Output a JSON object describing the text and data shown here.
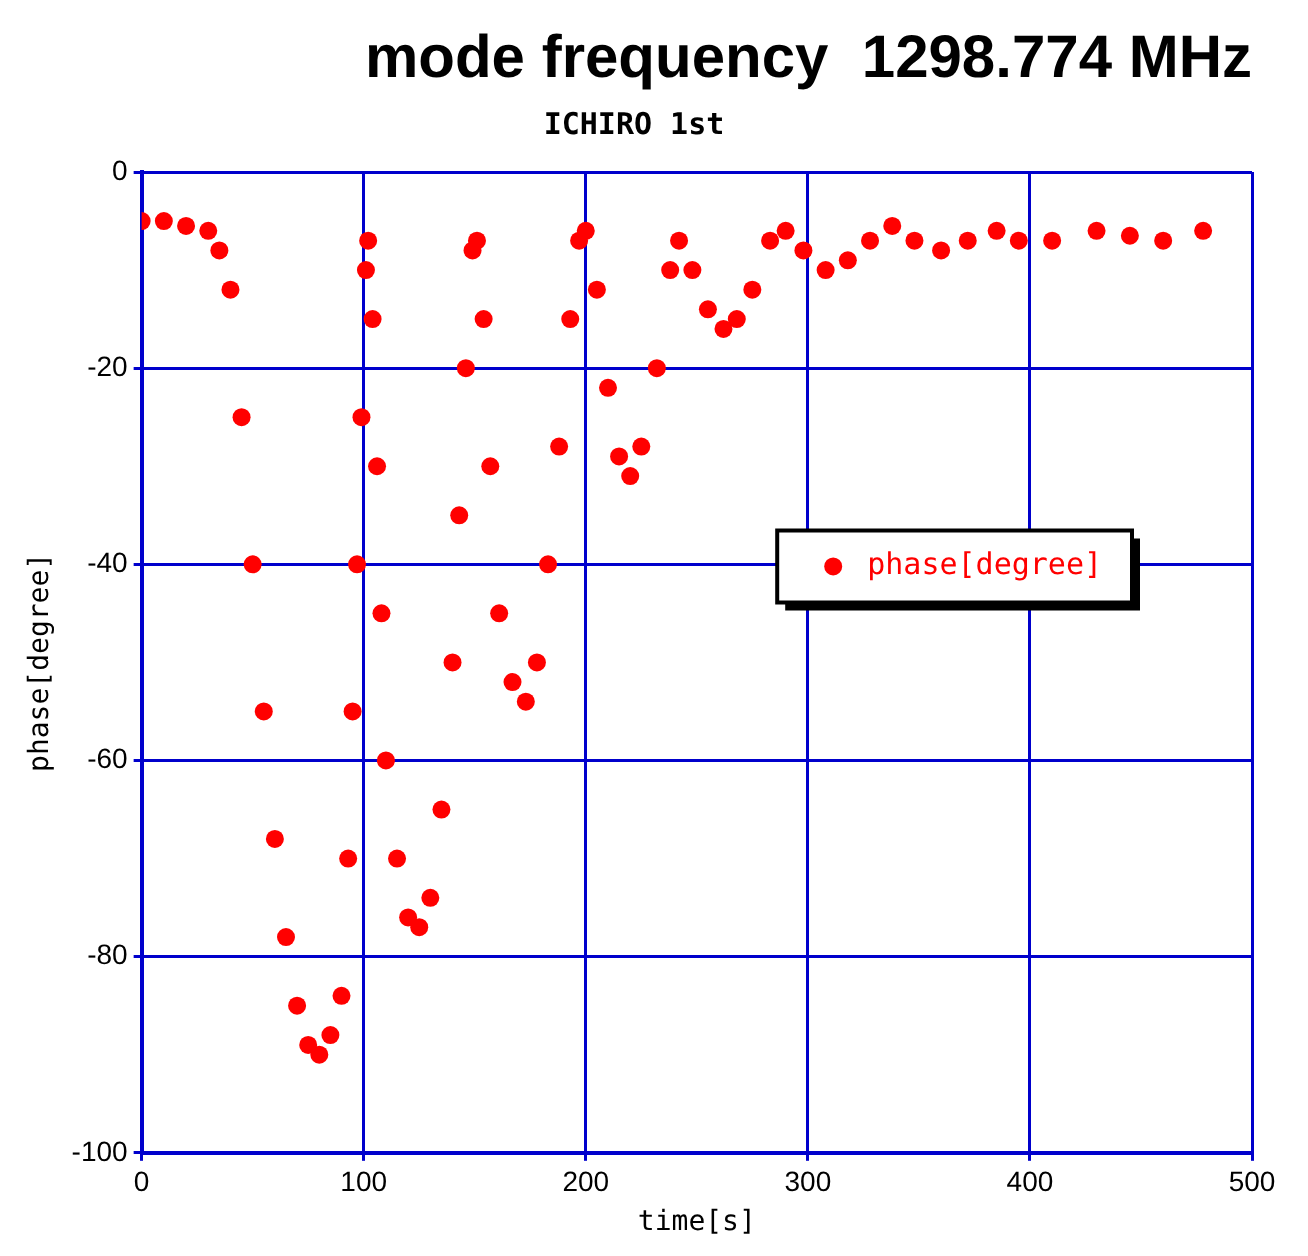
{
  "chart_data": {
    "type": "scatter",
    "title": "mode frequency  1298.774 MHz",
    "subtitle": "ICHIRO 1st",
    "xlabel": "time[s]",
    "ylabel": "phase[degree]",
    "xlim": [
      0,
      500
    ],
    "xticks": [
      0,
      100,
      200,
      300,
      400,
      500
    ],
    "ylim": [
      -100,
      0
    ],
    "yticks": [
      -100,
      -80,
      -60,
      -40,
      -20,
      0
    ],
    "grid": true,
    "legend": "right",
    "marker": "circle",
    "series": [
      {
        "name": "phase[degree]",
        "color": "#ff0000",
        "x": [
          0,
          10,
          20,
          30,
          35,
          40,
          45,
          50,
          55,
          60,
          65,
          70,
          75,
          80,
          85,
          90,
          93,
          95,
          97,
          99,
          101,
          102,
          104,
          106,
          108,
          110,
          115,
          120,
          125,
          130,
          135,
          140,
          143,
          146,
          149,
          151,
          154,
          157,
          161,
          167,
          173,
          178,
          183,
          188,
          193,
          197,
          200,
          205,
          210,
          215,
          220,
          225,
          232,
          238,
          242,
          248,
          255,
          262,
          268,
          275,
          283,
          290,
          298,
          308,
          318,
          328,
          338,
          348,
          360,
          372,
          385,
          395,
          410,
          430,
          445,
          460,
          478
        ],
        "values": [
          -5,
          -5,
          -5.5,
          -6,
          -8,
          -12,
          -25,
          -40,
          -55,
          -68,
          -78,
          -85,
          -89,
          -90,
          -88,
          -84,
          -70,
          -55,
          -40,
          -25,
          -10,
          -7,
          -15,
          -30,
          -45,
          -60,
          -70,
          -76,
          -77,
          -74,
          -65,
          -50,
          -35,
          -20,
          -8,
          -7,
          -15,
          -30,
          -45,
          -52,
          -54,
          -50,
          -40,
          -28,
          -15,
          -7,
          -6,
          -12,
          -22,
          -29,
          -31,
          -28,
          -20,
          -10,
          -7,
          -10,
          -14,
          -16,
          -15,
          -12,
          -7,
          -6,
          -8,
          -10,
          -9,
          -7,
          -5.5,
          -7,
          -8,
          -7,
          -6,
          -7,
          -7,
          -6,
          -6.5,
          -7,
          -6
        ]
      }
    ]
  }
}
